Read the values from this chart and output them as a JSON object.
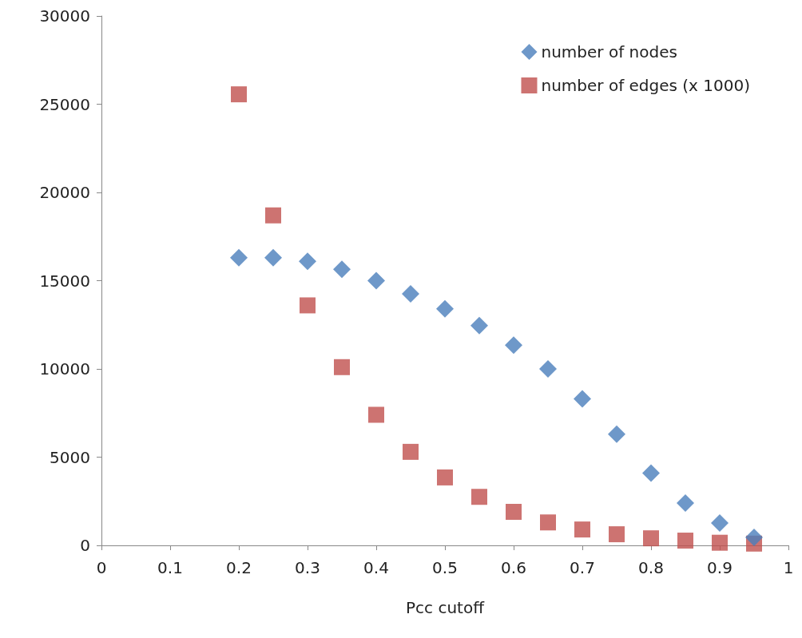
{
  "chart_data": {
    "type": "scatter",
    "xlabel": "Pcc cutoff",
    "x": [
      0.2,
      0.25,
      0.3,
      0.35,
      0.4,
      0.45,
      0.5,
      0.55,
      0.6,
      0.65,
      0.7,
      0.75,
      0.8,
      0.85,
      0.9,
      0.95
    ],
    "series": [
      {
        "name": "number of nodes",
        "color": "#4a7ebb",
        "marker": "diamond",
        "values": [
          16300,
          16300,
          16100,
          15650,
          15000,
          14250,
          13400,
          12450,
          11350,
          10000,
          8300,
          6300,
          4100,
          2400,
          1270,
          450
        ]
      },
      {
        "name": "number of edges (x 1000)",
        "color": "#c0504d",
        "marker": "square",
        "values": [
          25560,
          18700,
          13600,
          10100,
          7400,
          5300,
          3850,
          2750,
          1900,
          1300,
          900,
          630,
          400,
          270,
          150,
          100
        ]
      }
    ],
    "xlim": [
      0,
      1
    ],
    "xticks": [
      0,
      0.1,
      0.2,
      0.3,
      0.4,
      0.5,
      0.6,
      0.7,
      0.8,
      0.9,
      1
    ],
    "ylim": [
      0,
      30000
    ],
    "yticks": [
      0,
      5000,
      10000,
      15000,
      20000,
      25000,
      30000
    ],
    "grid": false,
    "legend": "top right"
  }
}
